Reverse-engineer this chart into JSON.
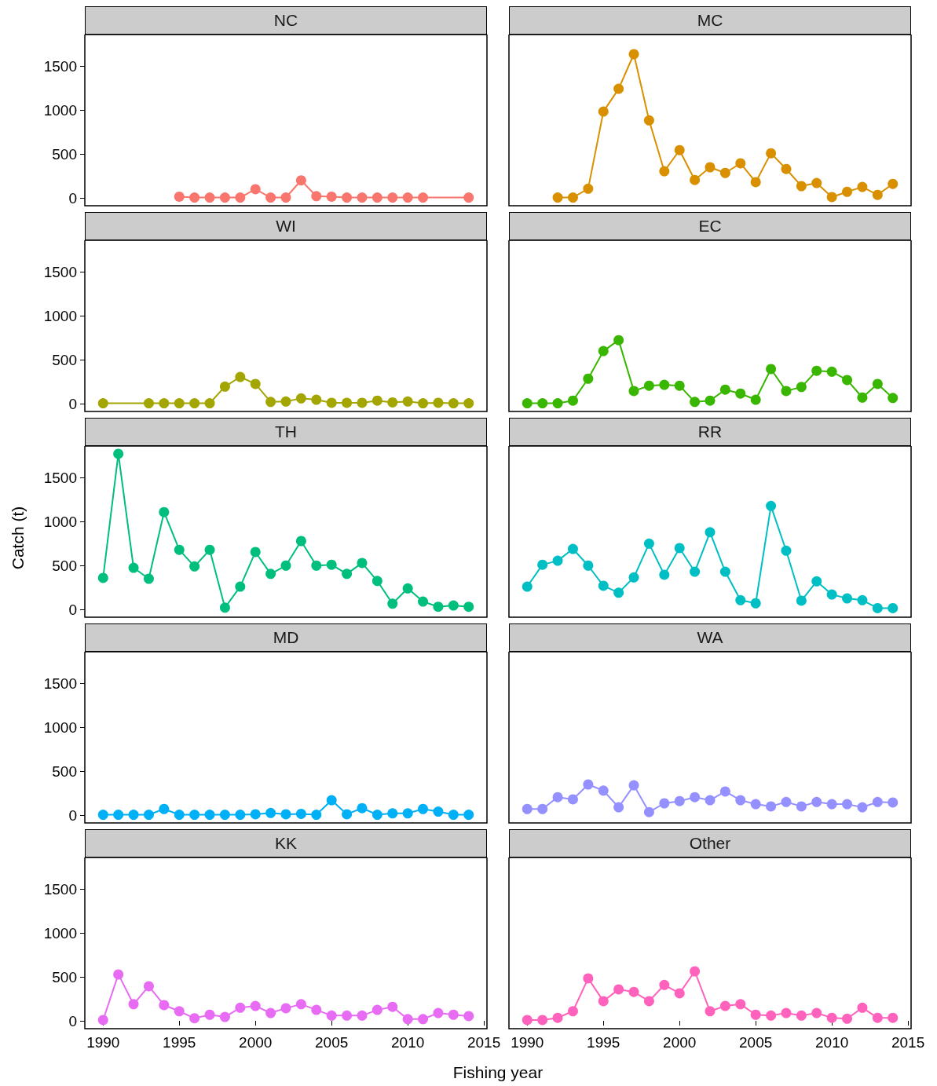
{
  "chart_data": [
    {
      "type": "line",
      "title": "NC",
      "x": [
        1995,
        1996,
        1997,
        1998,
        1999,
        2000,
        2001,
        2002,
        2003,
        2004,
        2005,
        2006,
        2007,
        2008,
        2009,
        2010,
        2011,
        2014
      ],
      "series": [
        {
          "color": "#f8766d",
          "values": [
            15,
            5,
            5,
            5,
            5,
            100,
            5,
            5,
            200,
            20,
            15,
            5,
            5,
            5,
            5,
            5,
            5,
            5
          ]
        }
      ],
      "xlim": [
        1988.8,
        2015.2
      ],
      "ylim": [
        -89,
        1864
      ],
      "xticks": [
        1990,
        1995,
        2000,
        2005,
        2010,
        2015
      ],
      "yticks": [
        0,
        500,
        1000,
        1500
      ],
      "tick_labels": "y",
      "marker": "circle",
      "line_style": "solid"
    },
    {
      "type": "line",
      "title": "MC",
      "x": [
        1992,
        1993,
        1994,
        1995,
        1996,
        1997,
        1998,
        1999,
        2000,
        2001,
        2002,
        2003,
        2004,
        2005,
        2006,
        2007,
        2008,
        2009,
        2010,
        2011,
        2012,
        2013,
        2014
      ],
      "series": [
        {
          "color": "#d89000",
          "values": [
            5,
            5,
            105,
            985,
            1245,
            1640,
            885,
            305,
            545,
            205,
            350,
            285,
            395,
            180,
            510,
            330,
            135,
            170,
            10,
            70,
            125,
            35,
            160
          ]
        }
      ],
      "xlim": [
        1988.8,
        2015.2
      ],
      "ylim": [
        -89,
        1864
      ],
      "xticks": [
        1990,
        1995,
        2000,
        2005,
        2010,
        2015
      ],
      "yticks": [
        0,
        500,
        1000,
        1500
      ],
      "tick_labels": false,
      "marker": "circle",
      "line_style": "solid"
    },
    {
      "type": "line",
      "title": "WI",
      "x": [
        1990,
        1993,
        1994,
        1995,
        1996,
        1997,
        1998,
        1999,
        2000,
        2001,
        2002,
        2003,
        2004,
        2005,
        2006,
        2007,
        2008,
        2009,
        2010,
        2011,
        2012,
        2013,
        2014
      ],
      "series": [
        {
          "color": "#a3a500",
          "values": [
            5,
            5,
            5,
            5,
            5,
            5,
            195,
            305,
            225,
            20,
            25,
            60,
            45,
            10,
            10,
            10,
            35,
            15,
            25,
            5,
            10,
            5,
            5
          ]
        }
      ],
      "xlim": [
        1988.8,
        2015.2
      ],
      "ylim": [
        -89,
        1864
      ],
      "xticks": [
        1990,
        1995,
        2000,
        2005,
        2010,
        2015
      ],
      "yticks": [
        0,
        500,
        1000,
        1500
      ],
      "tick_labels": "y",
      "marker": "circle",
      "line_style": "solid"
    },
    {
      "type": "line",
      "title": "EC",
      "x": [
        1990,
        1991,
        1992,
        1993,
        1994,
        1995,
        1996,
        1997,
        1998,
        1999,
        2000,
        2001,
        2002,
        2003,
        2004,
        2005,
        2006,
        2007,
        2008,
        2009,
        2010,
        2011,
        2012,
        2013,
        2014
      ],
      "series": [
        {
          "color": "#39b600",
          "values": [
            5,
            5,
            5,
            35,
            285,
            600,
            725,
            145,
            205,
            215,
            205,
            20,
            35,
            160,
            115,
            45,
            395,
            145,
            190,
            375,
            365,
            270,
            70,
            225,
            65
          ]
        }
      ],
      "xlim": [
        1988.8,
        2015.2
      ],
      "ylim": [
        -89,
        1864
      ],
      "xticks": [
        1990,
        1995,
        2000,
        2005,
        2010,
        2015
      ],
      "yticks": [
        0,
        500,
        1000,
        1500
      ],
      "tick_labels": false,
      "marker": "circle",
      "line_style": "solid"
    },
    {
      "type": "line",
      "title": "TH",
      "ylabel": "Catch (t)",
      "x": [
        1990,
        1991,
        1992,
        1993,
        1994,
        1995,
        1996,
        1997,
        1998,
        1999,
        2000,
        2001,
        2002,
        2003,
        2004,
        2005,
        2006,
        2007,
        2008,
        2009,
        2010,
        2011,
        2012,
        2013,
        2014
      ],
      "series": [
        {
          "color": "#00bf7d",
          "values": [
            360,
            1775,
            475,
            350,
            1110,
            680,
            490,
            680,
            20,
            260,
            655,
            405,
            500,
            780,
            500,
            510,
            405,
            530,
            325,
            65,
            240,
            90,
            30,
            45,
            30
          ]
        }
      ],
      "xlim": [
        1988.8,
        2015.2
      ],
      "ylim": [
        -89,
        1864
      ],
      "xticks": [
        1990,
        1995,
        2000,
        2005,
        2010,
        2015
      ],
      "yticks": [
        0,
        500,
        1000,
        1500
      ],
      "tick_labels": "y",
      "marker": "circle",
      "line_style": "solid"
    },
    {
      "type": "line",
      "title": "RR",
      "x": [
        1990,
        1991,
        1992,
        1993,
        1994,
        1995,
        1996,
        1997,
        1998,
        1999,
        2000,
        2001,
        2002,
        2003,
        2004,
        2005,
        2006,
        2007,
        2008,
        2009,
        2010,
        2011,
        2012,
        2013,
        2014
      ],
      "series": [
        {
          "color": "#00bfc4",
          "values": [
            260,
            510,
            555,
            690,
            500,
            270,
            190,
            365,
            750,
            395,
            700,
            430,
            880,
            430,
            105,
            70,
            1180,
            670,
            100,
            320,
            170,
            125,
            105,
            15,
            15
          ]
        }
      ],
      "xlim": [
        1988.8,
        2015.2
      ],
      "ylim": [
        -89,
        1864
      ],
      "xticks": [
        1990,
        1995,
        2000,
        2005,
        2010,
        2015
      ],
      "yticks": [
        0,
        500,
        1000,
        1500
      ],
      "tick_labels": false,
      "marker": "circle",
      "line_style": "solid"
    },
    {
      "type": "line",
      "title": "MD",
      "x": [
        1990,
        1991,
        1992,
        1993,
        1994,
        1995,
        1996,
        1997,
        1998,
        1999,
        2000,
        2001,
        2002,
        2003,
        2004,
        2005,
        2006,
        2007,
        2008,
        2009,
        2010,
        2011,
        2012,
        2013,
        2014
      ],
      "series": [
        {
          "color": "#00b0f6",
          "values": [
            5,
            5,
            5,
            5,
            70,
            5,
            5,
            5,
            5,
            5,
            10,
            25,
            10,
            15,
            5,
            170,
            10,
            80,
            5,
            20,
            20,
            70,
            40,
            5,
            5
          ]
        }
      ],
      "xlim": [
        1988.8,
        2015.2
      ],
      "ylim": [
        -89,
        1864
      ],
      "xticks": [
        1990,
        1995,
        2000,
        2005,
        2010,
        2015
      ],
      "yticks": [
        0,
        500,
        1000,
        1500
      ],
      "tick_labels": "y",
      "marker": "circle",
      "line_style": "solid"
    },
    {
      "type": "line",
      "title": "WA",
      "x": [
        1990,
        1991,
        1992,
        1993,
        1994,
        1995,
        1996,
        1997,
        1998,
        1999,
        2000,
        2001,
        2002,
        2003,
        2004,
        2005,
        2006,
        2007,
        2008,
        2009,
        2010,
        2011,
        2012,
        2013,
        2014
      ],
      "series": [
        {
          "color": "#9590ff",
          "values": [
            70,
            70,
            205,
            180,
            350,
            280,
            90,
            340,
            35,
            135,
            160,
            205,
            170,
            270,
            170,
            125,
            100,
            150,
            100,
            150,
            125,
            125,
            90,
            150,
            145
          ]
        }
      ],
      "xlim": [
        1988.8,
        2015.2
      ],
      "ylim": [
        -89,
        1864
      ],
      "xticks": [
        1990,
        1995,
        2000,
        2005,
        2010,
        2015
      ],
      "yticks": [
        0,
        500,
        1000,
        1500
      ],
      "tick_labels": false,
      "marker": "circle",
      "line_style": "solid"
    },
    {
      "type": "line",
      "title": "KK",
      "xlabel": "Fishing year",
      "x": [
        1990,
        1991,
        1992,
        1993,
        1994,
        1995,
        1996,
        1997,
        1998,
        1999,
        2000,
        2001,
        2002,
        2003,
        2004,
        2005,
        2006,
        2007,
        2008,
        2009,
        2010,
        2011,
        2012,
        2013,
        2014
      ],
      "series": [
        {
          "color": "#e76bf3",
          "values": [
            10,
            530,
            190,
            395,
            180,
            110,
            30,
            70,
            45,
            150,
            170,
            90,
            145,
            190,
            125,
            60,
            60,
            60,
            125,
            160,
            20,
            20,
            90,
            70,
            55
          ]
        }
      ],
      "xlim": [
        1988.8,
        2015.2
      ],
      "ylim": [
        -89,
        1864
      ],
      "xticks": [
        1990,
        1995,
        2000,
        2005,
        2010,
        2015
      ],
      "yticks": [
        0,
        500,
        1000,
        1500
      ],
      "marker": "circle",
      "line_style": "solid"
    },
    {
      "type": "line",
      "title": "Other",
      "x": [
        1990,
        1991,
        1992,
        1993,
        1994,
        1995,
        1996,
        1997,
        1998,
        1999,
        2000,
        2001,
        2002,
        2003,
        2004,
        2005,
        2006,
        2007,
        2008,
        2009,
        2010,
        2011,
        2012,
        2013,
        2014
      ],
      "series": [
        {
          "color": "#ff62bc",
          "values": [
            10,
            10,
            35,
            110,
            485,
            225,
            360,
            330,
            225,
            410,
            315,
            565,
            110,
            170,
            190,
            70,
            60,
            90,
            60,
            90,
            35,
            25,
            150,
            35,
            35
          ]
        }
      ],
      "xlim": [
        1988.8,
        2015.2
      ],
      "ylim": [
        -89,
        1864
      ],
      "xticks": [
        1990,
        1995,
        2000,
        2005,
        2010,
        2015
      ],
      "yticks": [
        0,
        500,
        1000,
        1500
      ],
      "tick_labels": "x",
      "marker": "circle",
      "line_style": "solid"
    }
  ]
}
